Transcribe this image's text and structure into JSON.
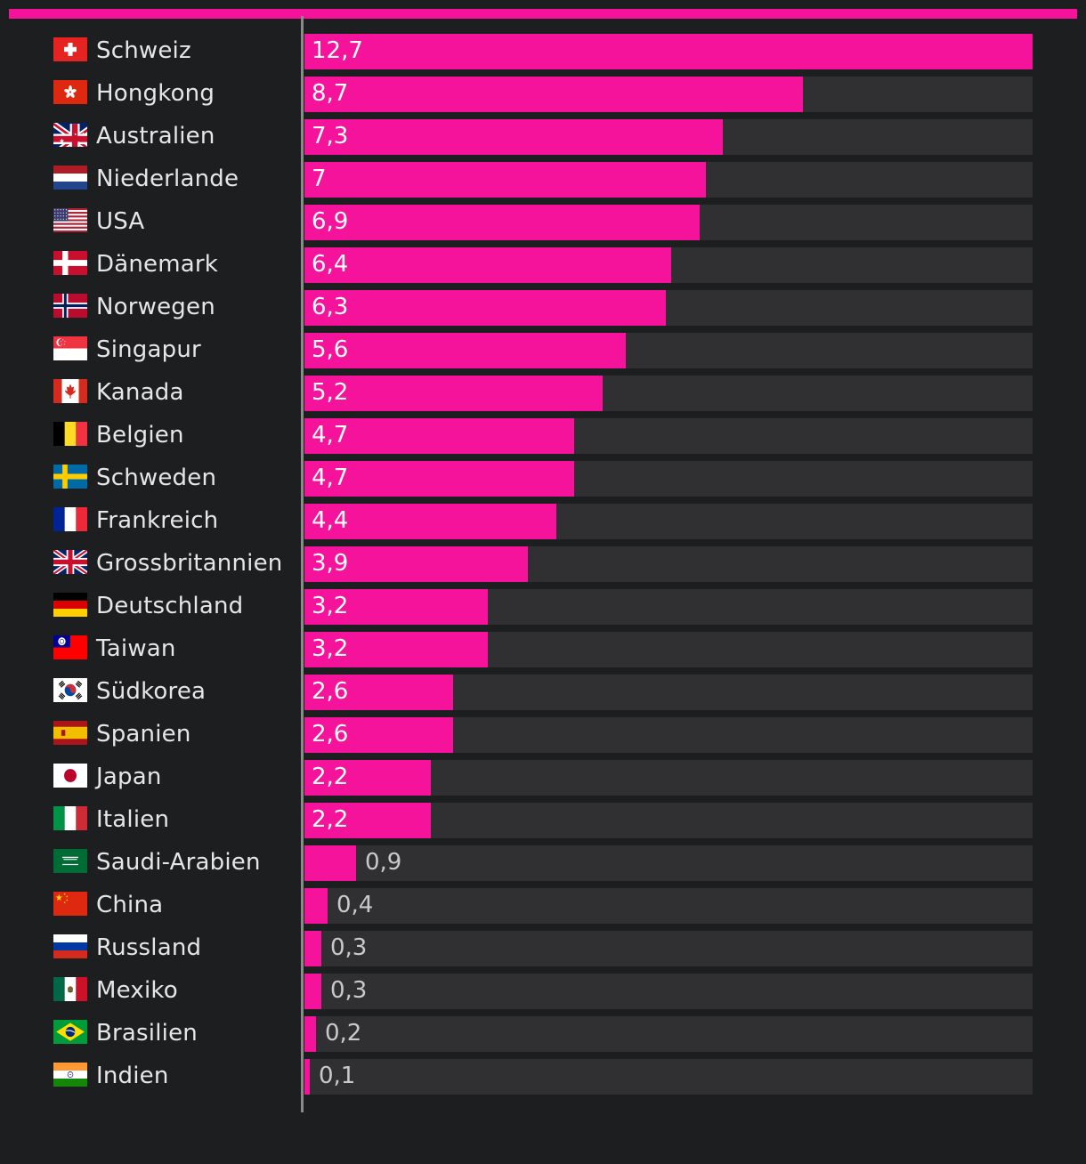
{
  "colors": {
    "background": "#1d1e20",
    "accent": "#f5139b",
    "track": "#303032",
    "axis": "#8a8a8a",
    "label_text": "#e6e6e6",
    "value_inside": "#ffffff",
    "value_outside": "#c9c9c9"
  },
  "chart_data": {
    "type": "bar",
    "orientation": "horizontal",
    "title": "",
    "xlabel": "",
    "ylabel": "",
    "xlim": [
      0,
      12.7
    ],
    "grid": false,
    "legend": "none",
    "categories": [
      "Schweiz",
      "Hongkong",
      "Australien",
      "Niederlande",
      "USA",
      "Dänemark",
      "Norwegen",
      "Singapur",
      "Kanada",
      "Belgien",
      "Schweden",
      "Frankreich",
      "Grossbritannien",
      "Deutschland",
      "Taiwan",
      "Südkorea",
      "Spanien",
      "Japan",
      "Italien",
      "Saudi-Arabien",
      "China",
      "Russland",
      "Mexiko",
      "Brasilien",
      "Indien"
    ],
    "values": [
      12.7,
      8.7,
      7.3,
      7,
      6.9,
      6.4,
      6.3,
      5.6,
      5.2,
      4.7,
      4.7,
      4.4,
      3.9,
      3.2,
      3.2,
      2.6,
      2.6,
      2.2,
      2.2,
      0.9,
      0.4,
      0.3,
      0.3,
      0.2,
      0.1
    ],
    "value_labels": [
      "12,7",
      "8,7",
      "7,3",
      "7",
      "6,9",
      "6,4",
      "6,3",
      "5,6",
      "5,2",
      "4,7",
      "4,7",
      "4,4",
      "3,9",
      "3,2",
      "3,2",
      "2,6",
      "2,6",
      "2,2",
      "2,2",
      "0,9",
      "0,4",
      "0,3",
      "0,3",
      "0,2",
      "0,1"
    ],
    "flag_icons": [
      "switzerland-flag",
      "hong-kong-flag",
      "australia-flag",
      "netherlands-flag",
      "usa-flag",
      "denmark-flag",
      "norway-flag",
      "singapore-flag",
      "canada-flag",
      "belgium-flag",
      "sweden-flag",
      "france-flag",
      "uk-flag",
      "germany-flag",
      "taiwan-flag",
      "south-korea-flag",
      "spain-flag",
      "japan-flag",
      "italy-flag",
      "saudi-arabia-flag",
      "china-flag",
      "russia-flag",
      "mexico-flag",
      "brazil-flag",
      "india-flag"
    ]
  }
}
